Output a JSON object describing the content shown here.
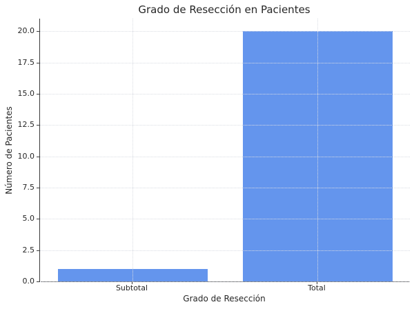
{
  "chart_data": {
    "type": "bar",
    "title": "Grado de Resección en Pacientes",
    "xlabel": "Grado de Resección",
    "ylabel": "Número de Pacientes",
    "categories": [
      "Subtotal",
      "Total"
    ],
    "values": [
      1,
      20
    ],
    "ylim": [
      0,
      21
    ],
    "yticks": [
      0,
      2.5,
      5,
      7.5,
      10,
      12.5,
      15,
      17.5,
      20
    ],
    "ytick_labels": [
      "0.0",
      "2.5",
      "5.0",
      "7.5",
      "10.0",
      "12.5",
      "15.0",
      "17.5",
      "20.0"
    ],
    "grid": true,
    "legend": "none",
    "bar_color": "#6495ed",
    "grid_color": "#d9dce3",
    "spine_color": "#3a3a3a",
    "text_color": "#262626"
  }
}
